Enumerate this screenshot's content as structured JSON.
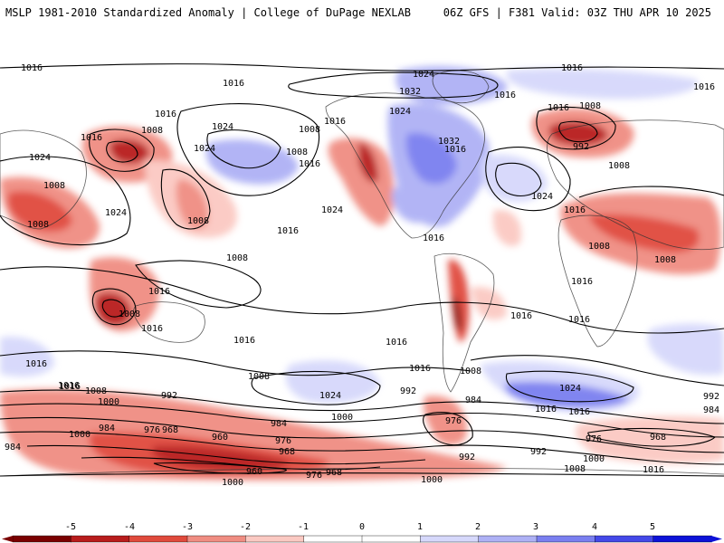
{
  "header": {
    "title": "MSLP 1981-2010 Standardized Anomaly | College of DuPage NEXLAB",
    "run_info": "06Z GFS | F381 Valid: 03Z THU APR 10 2025"
  },
  "colors": {
    "neg5": "#7a0000",
    "neg4": "#b81c1c",
    "neg3": "#e04a3c",
    "neg2": "#f08d82",
    "neg1": "#fbc9c2",
    "zero": "#ffffff",
    "pos1": "#d6d8fb",
    "pos2": "#aeb1f5",
    "pos3": "#7a7ff0",
    "pos4": "#4448e8",
    "pos5": "#0d12d8",
    "contour": "#000000",
    "coast": "#333333"
  },
  "colorbar": {
    "ticks": [
      "-5",
      "-4",
      "-3",
      "-2",
      "-1",
      "0",
      "1",
      "2",
      "3",
      "4",
      "5"
    ]
  },
  "contour_labels": [
    "1016",
    "1016",
    "1016",
    "1024",
    "1016",
    "1016",
    "1008",
    "1024",
    "1008",
    "1016",
    "1024",
    "1024",
    "1008",
    "1032",
    "1016",
    "1024",
    "1032",
    "1016",
    "1016",
    "1008",
    "1016",
    "1016",
    "992",
    "1024",
    "1016",
    "1008",
    "1024",
    "1008",
    "1016",
    "1024",
    "1008",
    "1008",
    "1016",
    "1008",
    "1008",
    "1016",
    "1016",
    "1008",
    "1016",
    "1008",
    "1016",
    "1016",
    "1016",
    "1016",
    "1016",
    "1024",
    "1016",
    "1024",
    "1008",
    "1016",
    "1016",
    "992",
    "1008",
    "1000",
    "984",
    "1000",
    "992",
    "984",
    "976",
    "968",
    "960",
    "1000",
    "976",
    "984",
    "976",
    "968",
    "992",
    "984",
    "976",
    "968",
    "992",
    "1000",
    "1008",
    "1016",
    "960",
    "976",
    "968",
    "1000",
    "1000",
    "1008",
    "1016",
    "1016",
    "992",
    "984"
  ]
}
